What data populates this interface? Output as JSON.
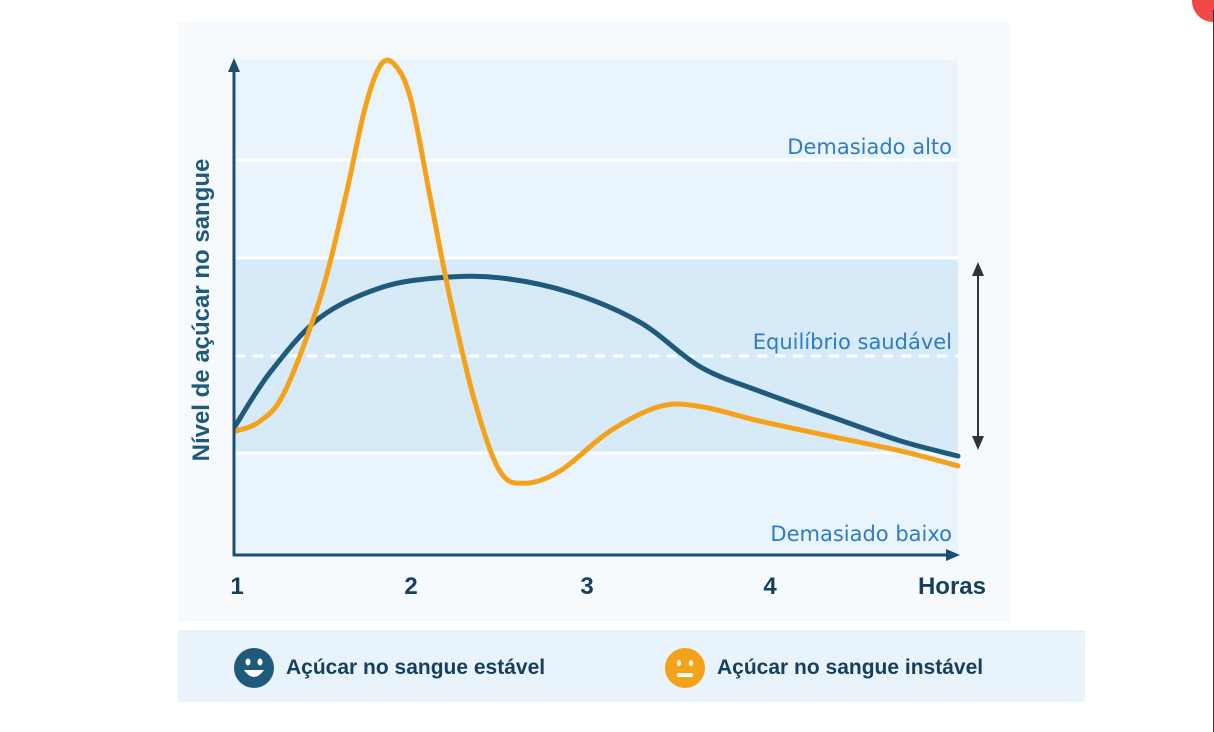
{
  "chart_data": {
    "type": "line",
    "title": "",
    "xlabel": "Horas",
    "ylabel": "Nível de açúcar no sangue",
    "x_ticks": [
      "1",
      "2",
      "3",
      "4"
    ],
    "xlim": [
      1,
      5.07
    ],
    "ylim": [
      0,
      100
    ],
    "y_tick_labels": [],
    "grid": false,
    "zones": [
      {
        "label": "Demasiado alto",
        "range": [
          60,
          100
        ]
      },
      {
        "label": "Equilíbrio saudável",
        "range": [
          20.6,
          60
        ],
        "midline": 40.2
      },
      {
        "label": "Demasiado baixo",
        "range": [
          0,
          20.6
        ]
      }
    ],
    "series": [
      {
        "name": "Açúcar no sangue estável",
        "color": "#1f5a7a",
        "x": [
          1.0,
          1.2,
          1.48,
          1.82,
          2.15,
          2.49,
          2.89,
          3.28,
          3.62,
          3.96,
          4.35,
          4.75,
          5.07
        ],
        "y": [
          26,
          37,
          48,
          54,
          56,
          56,
          53,
          47,
          38,
          33,
          28,
          23,
          20
        ]
      },
      {
        "name": "Açúcar no sangue instável",
        "color": "#f5a21b",
        "x": [
          1.0,
          1.14,
          1.28,
          1.48,
          1.62,
          1.73,
          1.82,
          1.9,
          1.99,
          2.1,
          2.21,
          2.35,
          2.49,
          2.63,
          2.83,
          3.11,
          3.39,
          3.62,
          3.96,
          4.35,
          4.75,
          5.07
        ],
        "y": [
          25,
          27,
          33,
          52,
          72,
          90,
          99,
          99,
          92,
          72,
          52,
          31,
          17,
          14.5,
          17,
          25,
          30,
          30,
          27,
          24,
          21,
          18
        ]
      }
    ],
    "legend": {
      "placement": "bottom",
      "items": [
        {
          "label": "Açúcar no sangue estável",
          "icon": "smiley-face-icon",
          "color": "#1f5a7a"
        },
        {
          "label": "Açúcar no sangue instável",
          "icon": "neutral-face-icon",
          "color": "#f5a21b"
        }
      ]
    },
    "colors": {
      "axis": "#1d4e6e",
      "zone_label": "#2d7cc4",
      "band": "#d6eaf8",
      "plot_bg": "#eaf4fc"
    }
  }
}
